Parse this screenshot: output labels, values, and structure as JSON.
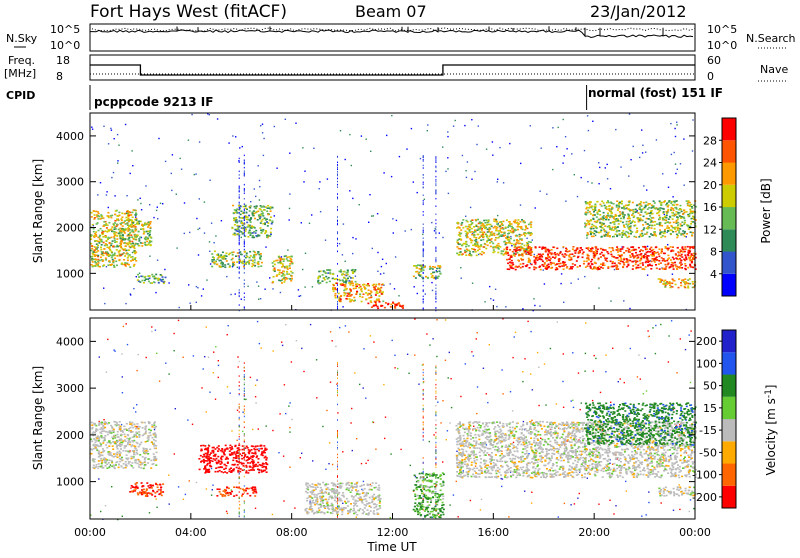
{
  "header": {
    "station": "Fort Hays West (fitACF)",
    "beam": "Beam 07",
    "date": "23/Jan/2012"
  },
  "sky_panel": {
    "left_label": "N.Sky",
    "right_label": "N.Search",
    "left_ticks": [
      "10^5",
      "10^0"
    ],
    "right_ticks": [
      "10^5",
      "10^0"
    ]
  },
  "freq_panel": {
    "left_label": "Freq.",
    "left_unit": "[MHz]",
    "right_label": "Nave",
    "left_ticks": [
      "18",
      "8"
    ],
    "right_ticks": [
      "60",
      "0"
    ],
    "freq_steps": [
      {
        "t": 0.0,
        "mhz": 14
      },
      {
        "t": 2.0,
        "mhz": 10
      },
      {
        "t": 14.0,
        "mhz": 14
      },
      {
        "t": 24.0,
        "mhz": 14
      }
    ]
  },
  "cpid": {
    "label": "CPID",
    "segments": [
      {
        "start": 0,
        "end": 19.7,
        "text": "pcppcode 9213 IF"
      },
      {
        "start": 19.7,
        "end": 24,
        "text": "normal (fost) 151 IF"
      }
    ]
  },
  "power_panel": {
    "ylabel": "Slant Range [km]",
    "yticks": [
      "4000",
      "3000",
      "2000",
      "1000"
    ],
    "colorbar_label": "Power [dB]",
    "colorbar_ticks": [
      "28",
      "24",
      "20",
      "16",
      "12",
      "8",
      "4"
    ],
    "colors": [
      "#0000ff",
      "#3355cc",
      "#2e8b57",
      "#66bb55",
      "#cccc00",
      "#ff9900",
      "#ff5500",
      "#ff0000"
    ]
  },
  "velocity_panel": {
    "ylabel": "Slant Range [km]",
    "yticks": [
      "4000",
      "3000",
      "2000",
      "1000"
    ],
    "colorbar_label": "Velocity [m s",
    "colorbar_sup": "-1",
    "colorbar_tail": "]",
    "colorbar_ticks": [
      "200",
      "100",
      "50",
      "15",
      "-15",
      "-50",
      "-100",
      "-200"
    ],
    "colors": [
      "#2222cc",
      "#2255ee",
      "#228822",
      "#66cc33",
      "#bbbbbb",
      "#ffaa00",
      "#ff6600",
      "#ff0000"
    ]
  },
  "x_axis": {
    "label": "Time UT",
    "ticks": [
      "00:00",
      "04:00",
      "08:00",
      "12:00",
      "16:00",
      "20:00",
      "00:00"
    ]
  },
  "chart_data": {
    "type": "heatmap",
    "title": "Fort Hays West (fitACF) Beam 07 23/Jan/2012",
    "xlabel": "Time UT",
    "xlim_hours": [
      0,
      24
    ],
    "ylabel": "Slant Range [km]",
    "ylim_km": [
      200,
      4500
    ],
    "power_scale_db": [
      0,
      32
    ],
    "velocity_scale_ms": [
      -250,
      250
    ],
    "power_echoes": [
      {
        "t0": 0.0,
        "t1": 1.8,
        "r0": 1150,
        "r1": 2400,
        "p": 18
      },
      {
        "t0": 1.1,
        "t1": 2.4,
        "r0": 1600,
        "r1": 2200,
        "p": 16
      },
      {
        "t0": 1.8,
        "t1": 3.0,
        "r0": 800,
        "r1": 1000,
        "p": 12
      },
      {
        "t0": 4.8,
        "t1": 6.8,
        "r0": 1150,
        "r1": 1500,
        "p": 16
      },
      {
        "t0": 5.6,
        "t1": 7.2,
        "r0": 1800,
        "r1": 2500,
        "p": 14
      },
      {
        "t0": 7.2,
        "t1": 8.0,
        "r0": 800,
        "r1": 1400,
        "p": 18
      },
      {
        "t0": 9.0,
        "t1": 10.5,
        "r0": 800,
        "r1": 1100,
        "p": 14
      },
      {
        "t0": 9.6,
        "t1": 11.6,
        "r0": 400,
        "r1": 800,
        "p": 22
      },
      {
        "t0": 11.0,
        "t1": 12.4,
        "r0": 250,
        "r1": 400,
        "p": 28
      },
      {
        "t0": 12.8,
        "t1": 13.9,
        "r0": 900,
        "r1": 1200,
        "p": 16
      },
      {
        "t0": 14.5,
        "t1": 17.5,
        "r0": 1400,
        "r1": 2200,
        "p": 18
      },
      {
        "t0": 16.5,
        "t1": 24.0,
        "r0": 1100,
        "r1": 1600,
        "p": 28
      },
      {
        "t0": 19.6,
        "t1": 24.0,
        "r0": 1800,
        "r1": 2600,
        "p": 16
      },
      {
        "t0": 22.5,
        "t1": 24.0,
        "r0": 700,
        "r1": 900,
        "p": 20
      }
    ],
    "velocity_echoes": [
      {
        "t0": 0.0,
        "t1": 2.6,
        "r0": 1300,
        "r1": 2300,
        "v": 0
      },
      {
        "t0": 1.5,
        "t1": 2.9,
        "r0": 700,
        "r1": 1000,
        "v": -100
      },
      {
        "t0": 4.3,
        "t1": 7.0,
        "r0": 1200,
        "r1": 1800,
        "v": -200
      },
      {
        "t0": 5.0,
        "t1": 6.6,
        "r0": 700,
        "r1": 900,
        "v": -100
      },
      {
        "t0": 8.5,
        "t1": 11.5,
        "r0": 300,
        "r1": 1000,
        "v": 0
      },
      {
        "t0": 12.8,
        "t1": 14.0,
        "r0": 250,
        "r1": 1200,
        "v": 30
      },
      {
        "t0": 14.5,
        "t1": 24.0,
        "r0": 1100,
        "r1": 2300,
        "v": 0
      },
      {
        "t0": 19.6,
        "t1": 24.0,
        "r0": 1800,
        "r1": 2700,
        "v": 60
      },
      {
        "t0": 22.5,
        "t1": 24.0,
        "r0": 700,
        "r1": 900,
        "v": 0
      }
    ]
  }
}
